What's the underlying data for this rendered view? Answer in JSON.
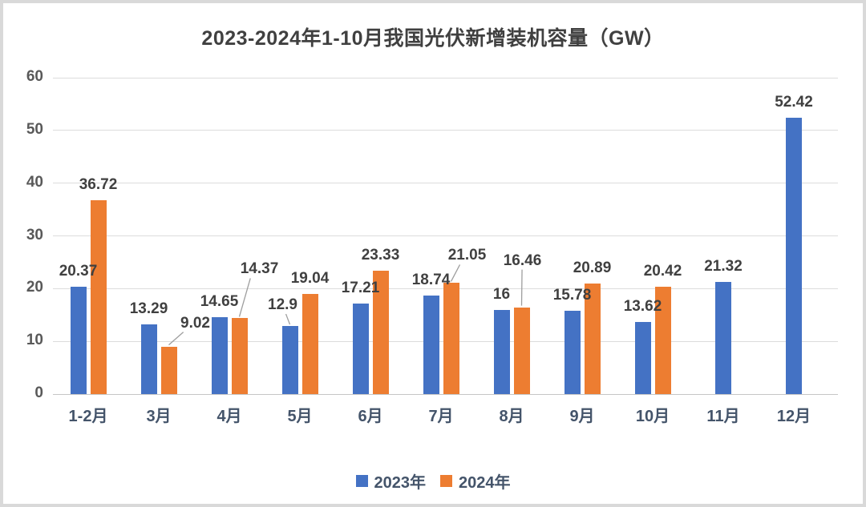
{
  "title": "2023-2024年1-10月我国光伏新增装机容量（GW）",
  "colors": {
    "series_2023": "#4472C4",
    "series_2024": "#ED7D31",
    "gridline": "#DCDCDC",
    "axis_tick_text": "#595959",
    "category_text": "#44546A",
    "data_label_text": "#404040",
    "title_text": "#404040",
    "frame_border": "#D9D9D9",
    "leader_line": "#9E9E9E"
  },
  "legend": {
    "items": [
      {
        "label": "2023年",
        "color": "#4472C4"
      },
      {
        "label": "2024年",
        "color": "#ED7D31"
      }
    ]
  },
  "chart_data": {
    "type": "bar",
    "title": "2023-2024年1-10月我国光伏新增装机容量（GW）",
    "categories": [
      "1-2月",
      "3月",
      "4月",
      "5月",
      "6月",
      "7月",
      "8月",
      "9月",
      "10月",
      "11月",
      "12月"
    ],
    "series": [
      {
        "name": "2023年",
        "color": "#4472C4",
        "values": [
          20.37,
          13.29,
          14.65,
          12.9,
          17.21,
          18.74,
          16,
          15.78,
          13.62,
          21.32,
          52.42
        ]
      },
      {
        "name": "2024年",
        "color": "#ED7D31",
        "values": [
          36.72,
          9.02,
          14.37,
          19.04,
          23.33,
          21.05,
          16.46,
          20.89,
          20.42,
          null,
          null
        ]
      }
    ],
    "xlabel": "",
    "ylabel": "",
    "ylim": [
      0,
      60
    ],
    "yticks": [
      0,
      10,
      20,
      30,
      40,
      50,
      60
    ],
    "grid": true,
    "data_labels": true,
    "legend_position": "bottom"
  }
}
